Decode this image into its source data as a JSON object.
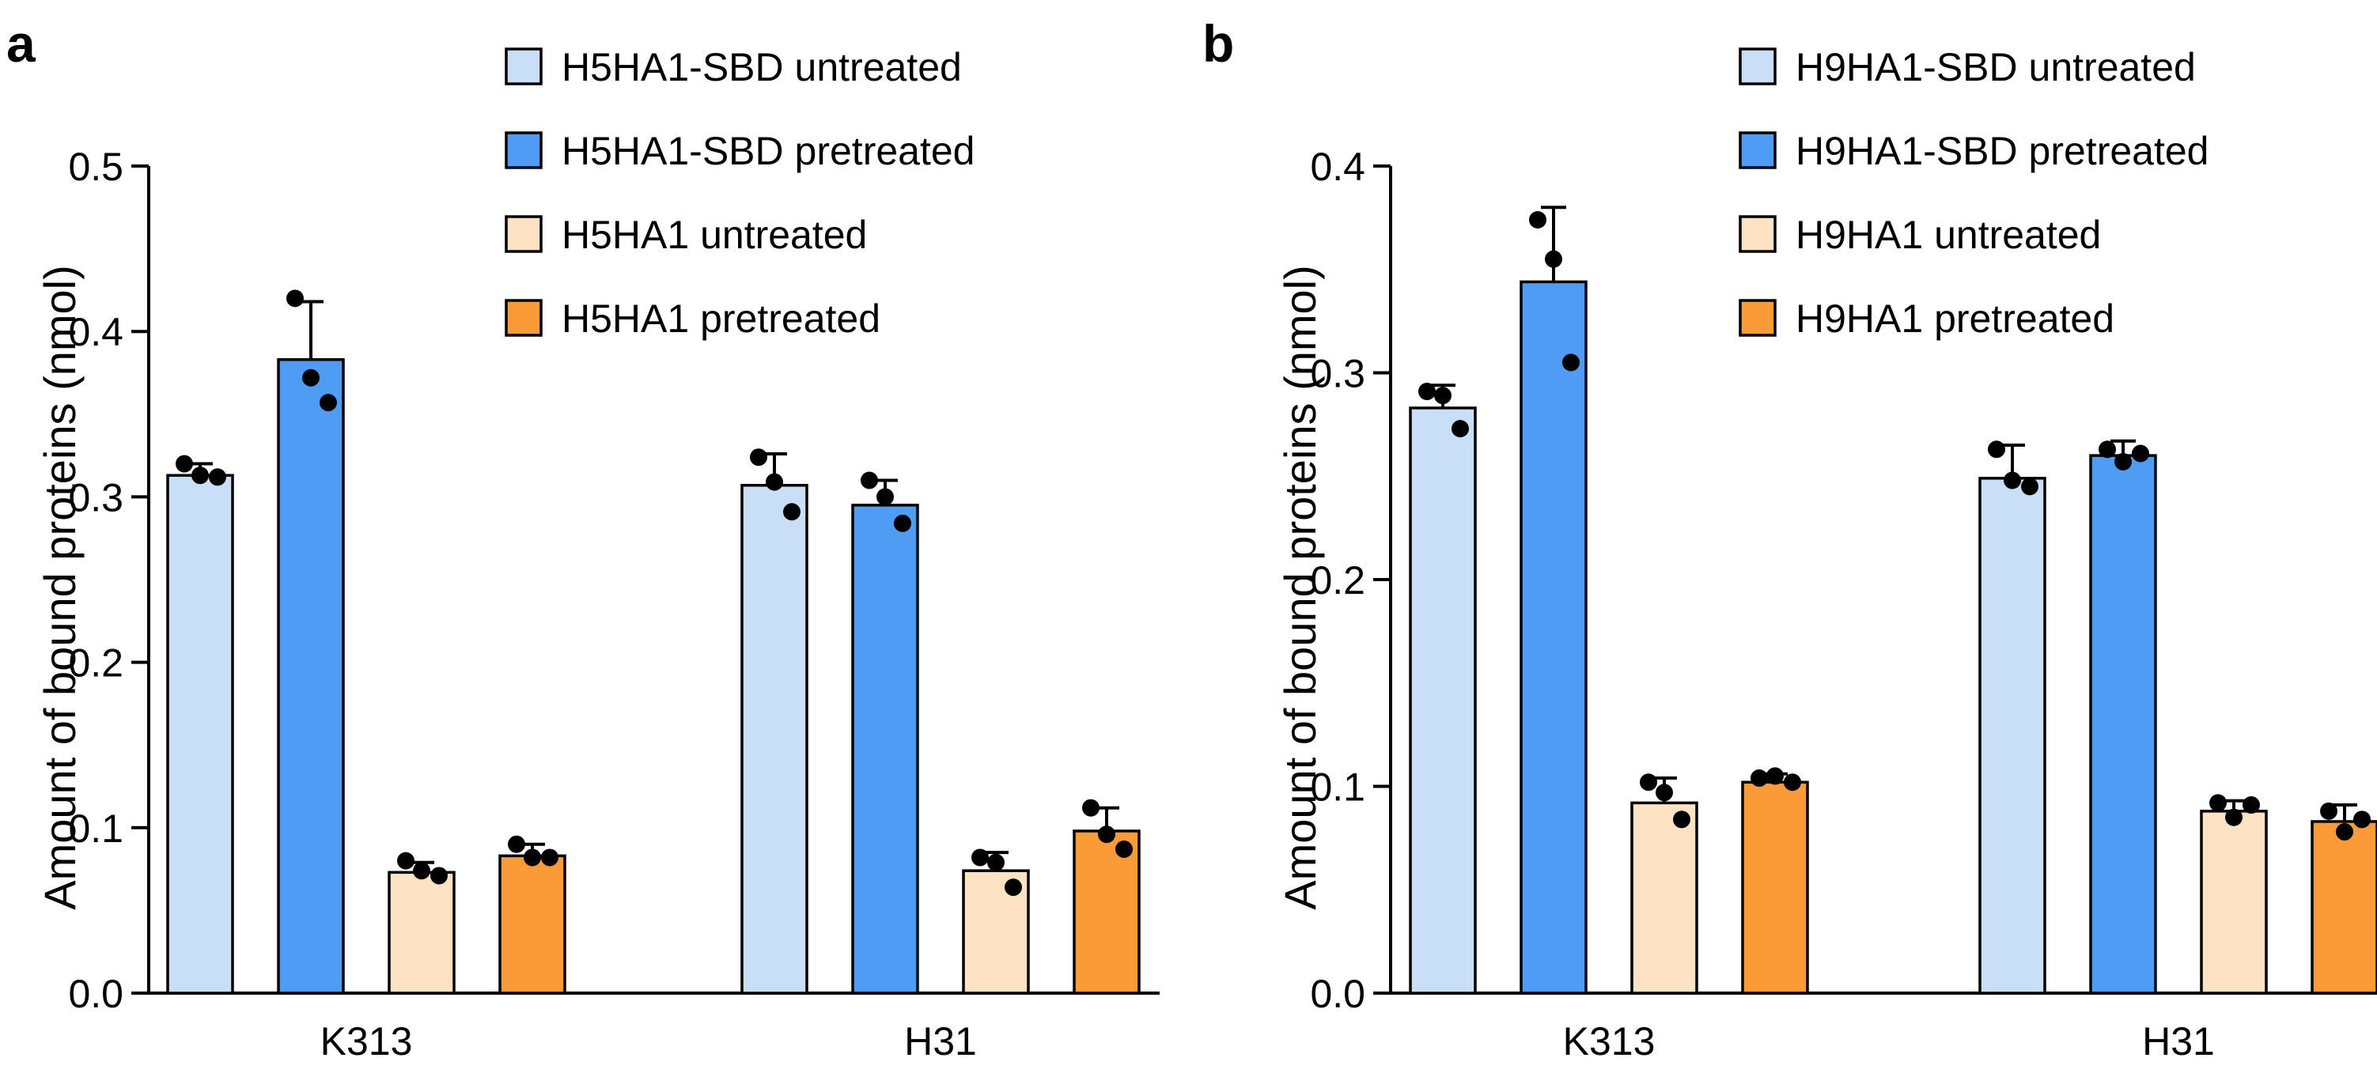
{
  "chart_data": [
    {
      "panel_label": "a",
      "type": "bar",
      "categories": [
        "K313",
        "H31"
      ],
      "ylabel": "Amount of bound proteins (nmol)",
      "xlabel": "",
      "ylim": [
        0,
        0.5
      ],
      "yticks": [
        "0.0",
        "0.1",
        "0.2",
        "0.3",
        "0.4",
        "0.5"
      ],
      "legend_position": "top-right",
      "series": [
        {
          "name": "H5HA1-SBD untreated",
          "color": "#c9dff7",
          "values": [
            0.313,
            0.307
          ],
          "errors": [
            0.007,
            0.019
          ],
          "points": [
            [
              0.32,
              0.313,
              0.312
            ],
            [
              0.324,
              0.309,
              0.291
            ]
          ]
        },
        {
          "name": "H5HA1-SBD pretreated",
          "color": "#4f9cf5",
          "values": [
            0.383,
            0.295
          ],
          "errors": [
            0.035,
            0.015
          ],
          "points": [
            [
              0.42,
              0.372,
              0.357
            ],
            [
              0.31,
              0.3,
              0.284
            ]
          ]
        },
        {
          "name": "H5HA1 untreated",
          "color": "#fde3c4",
          "values": [
            0.073,
            0.074
          ],
          "errors": [
            0.006,
            0.011
          ],
          "points": [
            [
              0.08,
              0.074,
              0.071
            ],
            [
              0.082,
              0.079,
              0.064
            ]
          ]
        },
        {
          "name": "H5HA1 pretreated",
          "color": "#fb9b38",
          "values": [
            0.083,
            0.098
          ],
          "errors": [
            0.007,
            0.014
          ],
          "points": [
            [
              0.09,
              0.082,
              0.082
            ],
            [
              0.112,
              0.096,
              0.087
            ]
          ]
        }
      ]
    },
    {
      "panel_label": "b",
      "type": "bar",
      "categories": [
        "K313",
        "H31"
      ],
      "ylabel": "Amount of bound proteins (nmol)",
      "xlabel": "",
      "ylim": [
        0,
        0.4
      ],
      "yticks": [
        "0.0",
        "0.1",
        "0.2",
        "0.3",
        "0.4"
      ],
      "legend_position": "top-right",
      "series": [
        {
          "name": "H9HA1-SBD untreated",
          "color": "#c9dff7",
          "values": [
            0.283,
            0.249
          ],
          "errors": [
            0.011,
            0.016
          ],
          "points": [
            [
              0.291,
              0.289,
              0.273
            ],
            [
              0.263,
              0.248,
              0.245
            ]
          ]
        },
        {
          "name": "H9HA1-SBD pretreated",
          "color": "#4f9cf5",
          "values": [
            0.344,
            0.26
          ],
          "errors": [
            0.036,
            0.007
          ],
          "points": [
            [
              0.374,
              0.355,
              0.305
            ],
            [
              0.263,
              0.257,
              0.261
            ]
          ]
        },
        {
          "name": "H9HA1 untreated",
          "color": "#fde3c4",
          "values": [
            0.092,
            0.088
          ],
          "errors": [
            0.012,
            0.005
          ],
          "points": [
            [
              0.102,
              0.097,
              0.084
            ],
            [
              0.092,
              0.085,
              0.091
            ]
          ]
        },
        {
          "name": "H9HA1 pretreated",
          "color": "#fb9b38",
          "values": [
            0.102,
            0.083
          ],
          "errors": [
            0.004,
            0.008
          ],
          "points": [
            [
              0.104,
              0.105,
              0.102
            ],
            [
              0.088,
              0.078,
              0.084
            ]
          ]
        }
      ]
    }
  ]
}
